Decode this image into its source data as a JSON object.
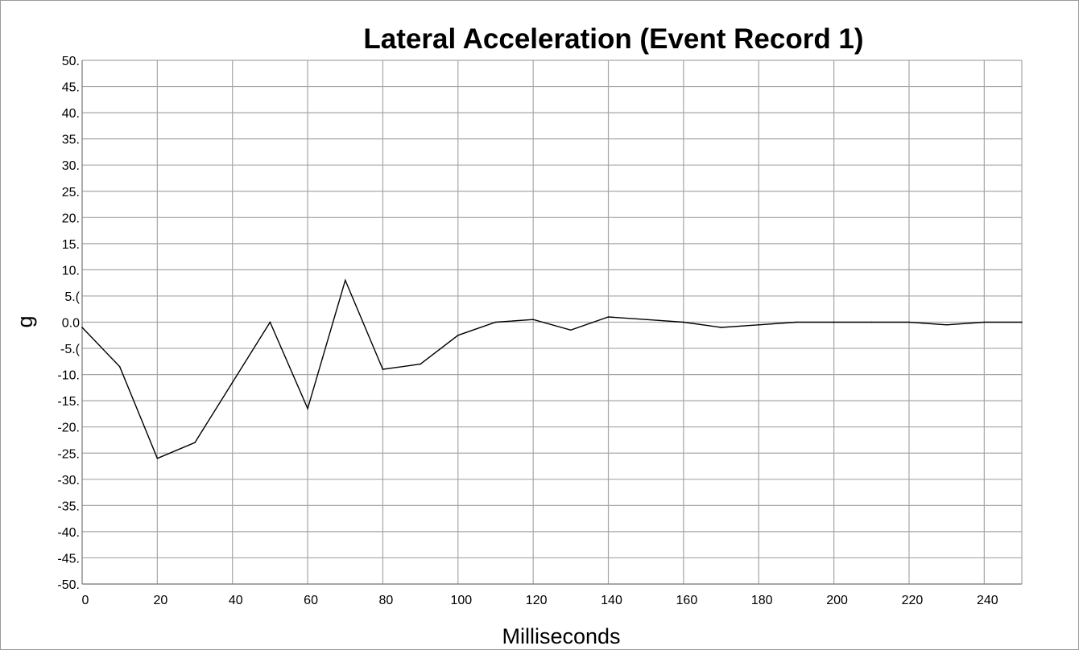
{
  "chart_data": {
    "type": "line",
    "title": "Lateral Acceleration (Event Record 1)",
    "xlabel": "Milliseconds",
    "ylabel": "g",
    "xlim": [
      0,
      250
    ],
    "ylim": [
      -50,
      50
    ],
    "grid": true,
    "x_ticks": [
      0,
      20,
      40,
      60,
      80,
      100,
      120,
      140,
      160,
      180,
      200,
      220,
      240
    ],
    "x_tick_labels": [
      "0",
      "20",
      "40",
      "60",
      "80",
      "100",
      "120",
      "140",
      "160",
      "180",
      "200",
      "220",
      "240"
    ],
    "x_grid": [
      0,
      20,
      40,
      60,
      80,
      100,
      120,
      140,
      160,
      180,
      200,
      220,
      240,
      250
    ],
    "y_ticks": [
      50,
      45,
      40,
      35,
      30,
      25,
      20,
      15,
      10,
      5,
      0,
      -5,
      -10,
      -15,
      -20,
      -25,
      -30,
      -35,
      -40,
      -45,
      -50
    ],
    "y_tick_labels": [
      "50.",
      "45.",
      "40.",
      "35.",
      "30.",
      "25.",
      "20.",
      "15.",
      "10.",
      "5.(",
      "0.0",
      "-5.(",
      "-10.",
      "-15.",
      "-20.",
      "-25.",
      "-30.",
      "-35.",
      "-40.",
      "-45.",
      "-50."
    ],
    "series": [
      {
        "color": "#000000",
        "x": [
          0,
          10,
          20,
          30,
          40,
          50,
          60,
          70,
          80,
          90,
          100,
          110,
          120,
          130,
          140,
          150,
          160,
          170,
          180,
          190,
          200,
          210,
          220,
          230,
          240,
          250
        ],
        "values": [
          -1.0,
          -8.5,
          -26.0,
          -23.0,
          -11.5,
          0.0,
          -16.5,
          8.0,
          -9.0,
          -8.0,
          -2.5,
          0.0,
          0.5,
          -1.5,
          1.0,
          0.5,
          0.0,
          -1.0,
          -0.5,
          0.0,
          0.0,
          0.0,
          0.0,
          -0.5,
          0.0,
          0.0
        ]
      }
    ]
  }
}
